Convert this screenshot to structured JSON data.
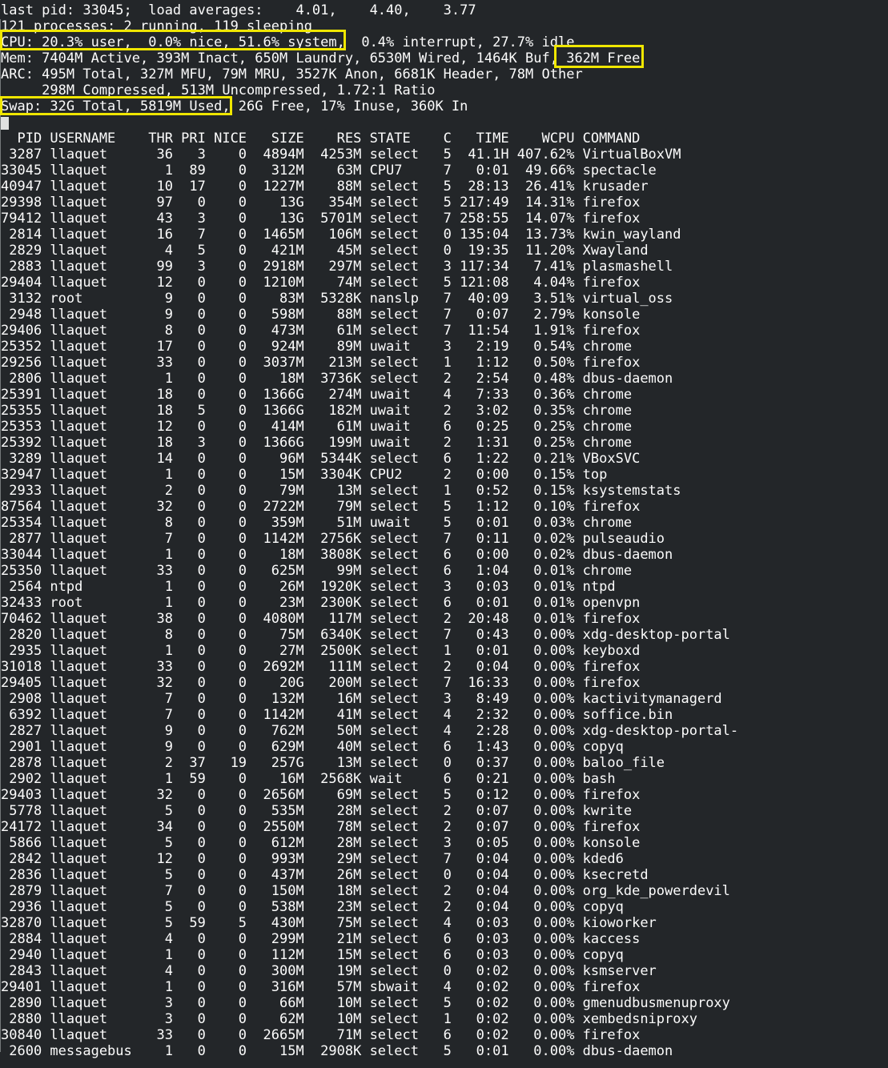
{
  "terminal": {
    "colors": {
      "background": "#232629",
      "foreground": "#fcfcfc",
      "highlight_border": "#efe600",
      "cursor": "#dfe0e0"
    },
    "summary_lines": [
      "last pid: 33045;  load averages:    4.01,    4.40,    3.77",
      "121 processes: 2 running, 119 sleeping",
      "CPU: 20.3% user,  0.0% nice, 51.6% system,  0.4% interrupt, 27.7% idle",
      "Mem: 7404M Active, 393M Inact, 650M Laundry, 6530M Wired, 1464K Buf, 362M Free",
      "ARC: 495M Total, 327M MFU, 79M MRU, 3527K Anon, 6681K Header, 78M Other",
      "     298M Compressed, 513M Uncompressed, 1.72:1 Ratio",
      "Swap: 32G Total, 5819M Used, 26G Free, 17% Inuse, 360K In"
    ],
    "highlights": [
      {
        "id": "cpu",
        "highlighted_text": "CPU: 20.3% user,  0.0% nice, 51.6% system,"
      },
      {
        "id": "mem-free",
        "highlighted_text": "362M Free"
      },
      {
        "id": "swap-used",
        "highlighted_text": "Swap: 32G Total, 5819M Used,"
      }
    ],
    "process_table": {
      "columns": [
        "PID",
        "USERNAME",
        "THR",
        "PRI",
        "NICE",
        "SIZE",
        "RES",
        "STATE",
        "C",
        "TIME",
        "WCPU",
        "COMMAND"
      ],
      "rows": [
        [
          "3287",
          "llaquet",
          "36",
          "3",
          "0",
          "4894M",
          "4253M",
          "select",
          "5",
          "41.1H",
          "407.62%",
          "VirtualBoxVM"
        ],
        [
          "33045",
          "llaquet",
          "1",
          "89",
          "0",
          "312M",
          "63M",
          "CPU7",
          "7",
          "0:01",
          "49.66%",
          "spectacle"
        ],
        [
          "40947",
          "llaquet",
          "10",
          "17",
          "0",
          "1227M",
          "88M",
          "select",
          "5",
          "28:13",
          "26.41%",
          "krusader"
        ],
        [
          "29398",
          "llaquet",
          "97",
          "0",
          "0",
          "13G",
          "354M",
          "select",
          "5",
          "217:49",
          "14.31%",
          "firefox"
        ],
        [
          "79412",
          "llaquet",
          "43",
          "3",
          "0",
          "13G",
          "5701M",
          "select",
          "7",
          "258:55",
          "14.07%",
          "firefox"
        ],
        [
          "2814",
          "llaquet",
          "16",
          "7",
          "0",
          "1465M",
          "106M",
          "select",
          "0",
          "135:04",
          "13.73%",
          "kwin_wayland"
        ],
        [
          "2829",
          "llaquet",
          "4",
          "5",
          "0",
          "421M",
          "45M",
          "select",
          "0",
          "19:35",
          "11.20%",
          "Xwayland"
        ],
        [
          "2883",
          "llaquet",
          "99",
          "3",
          "0",
          "2918M",
          "297M",
          "select",
          "3",
          "117:34",
          "7.41%",
          "plasmashell"
        ],
        [
          "29404",
          "llaquet",
          "12",
          "0",
          "0",
          "1210M",
          "74M",
          "select",
          "5",
          "121:08",
          "4.04%",
          "firefox"
        ],
        [
          "3132",
          "root",
          "9",
          "0",
          "0",
          "83M",
          "5328K",
          "nanslp",
          "7",
          "40:09",
          "3.51%",
          "virtual_oss"
        ],
        [
          "2948",
          "llaquet",
          "9",
          "0",
          "0",
          "598M",
          "88M",
          "select",
          "7",
          "0:07",
          "2.79%",
          "konsole"
        ],
        [
          "29406",
          "llaquet",
          "8",
          "0",
          "0",
          "473M",
          "61M",
          "select",
          "7",
          "11:54",
          "1.91%",
          "firefox"
        ],
        [
          "25352",
          "llaquet",
          "17",
          "0",
          "0",
          "924M",
          "89M",
          "uwait",
          "3",
          "2:19",
          "0.54%",
          "chrome"
        ],
        [
          "29256",
          "llaquet",
          "33",
          "0",
          "0",
          "3037M",
          "213M",
          "select",
          "1",
          "1:12",
          "0.50%",
          "firefox"
        ],
        [
          "2806",
          "llaquet",
          "1",
          "0",
          "0",
          "18M",
          "3736K",
          "select",
          "2",
          "2:54",
          "0.48%",
          "dbus-daemon"
        ],
        [
          "25391",
          "llaquet",
          "18",
          "0",
          "0",
          "1366G",
          "274M",
          "uwait",
          "4",
          "7:33",
          "0.36%",
          "chrome"
        ],
        [
          "25355",
          "llaquet",
          "18",
          "5",
          "0",
          "1366G",
          "182M",
          "uwait",
          "2",
          "3:02",
          "0.35%",
          "chrome"
        ],
        [
          "25353",
          "llaquet",
          "12",
          "0",
          "0",
          "414M",
          "61M",
          "uwait",
          "6",
          "0:25",
          "0.25%",
          "chrome"
        ],
        [
          "25392",
          "llaquet",
          "18",
          "3",
          "0",
          "1366G",
          "199M",
          "uwait",
          "2",
          "1:31",
          "0.25%",
          "chrome"
        ],
        [
          "3289",
          "llaquet",
          "14",
          "0",
          "0",
          "96M",
          "5344K",
          "select",
          "6",
          "1:22",
          "0.21%",
          "VBoxSVC"
        ],
        [
          "32947",
          "llaquet",
          "1",
          "0",
          "0",
          "15M",
          "3304K",
          "CPU2",
          "2",
          "0:00",
          "0.15%",
          "top"
        ],
        [
          "2933",
          "llaquet",
          "2",
          "0",
          "0",
          "79M",
          "13M",
          "select",
          "1",
          "0:52",
          "0.15%",
          "ksystemstats"
        ],
        [
          "87564",
          "llaquet",
          "32",
          "0",
          "0",
          "2722M",
          "79M",
          "select",
          "5",
          "1:12",
          "0.10%",
          "firefox"
        ],
        [
          "25354",
          "llaquet",
          "8",
          "0",
          "0",
          "359M",
          "51M",
          "uwait",
          "5",
          "0:01",
          "0.03%",
          "chrome"
        ],
        [
          "2877",
          "llaquet",
          "7",
          "0",
          "0",
          "1142M",
          "2756K",
          "select",
          "7",
          "0:11",
          "0.02%",
          "pulseaudio"
        ],
        [
          "33044",
          "llaquet",
          "1",
          "0",
          "0",
          "18M",
          "3808K",
          "select",
          "6",
          "0:00",
          "0.02%",
          "dbus-daemon"
        ],
        [
          "25350",
          "llaquet",
          "33",
          "0",
          "0",
          "625M",
          "99M",
          "select",
          "6",
          "1:04",
          "0.01%",
          "chrome"
        ],
        [
          "2564",
          "ntpd",
          "1",
          "0",
          "0",
          "26M",
          "1920K",
          "select",
          "3",
          "0:03",
          "0.01%",
          "ntpd"
        ],
        [
          "32433",
          "root",
          "1",
          "0",
          "0",
          "23M",
          "2300K",
          "select",
          "6",
          "0:01",
          "0.01%",
          "openvpn"
        ],
        [
          "70462",
          "llaquet",
          "38",
          "0",
          "0",
          "4080M",
          "117M",
          "select",
          "2",
          "20:48",
          "0.01%",
          "firefox"
        ],
        [
          "2820",
          "llaquet",
          "8",
          "0",
          "0",
          "75M",
          "6340K",
          "select",
          "7",
          "0:43",
          "0.00%",
          "xdg-desktop-portal"
        ],
        [
          "2935",
          "llaquet",
          "1",
          "0",
          "0",
          "27M",
          "2500K",
          "select",
          "1",
          "0:01",
          "0.00%",
          "keyboxd"
        ],
        [
          "31018",
          "llaquet",
          "33",
          "0",
          "0",
          "2692M",
          "111M",
          "select",
          "2",
          "0:04",
          "0.00%",
          "firefox"
        ],
        [
          "29405",
          "llaquet",
          "32",
          "0",
          "0",
          "20G",
          "200M",
          "select",
          "7",
          "16:33",
          "0.00%",
          "firefox"
        ],
        [
          "2908",
          "llaquet",
          "7",
          "0",
          "0",
          "132M",
          "16M",
          "select",
          "3",
          "8:49",
          "0.00%",
          "kactivitymanagerd"
        ],
        [
          "6392",
          "llaquet",
          "7",
          "0",
          "0",
          "1142M",
          "41M",
          "select",
          "4",
          "2:32",
          "0.00%",
          "soffice.bin"
        ],
        [
          "2827",
          "llaquet",
          "9",
          "0",
          "0",
          "762M",
          "50M",
          "select",
          "4",
          "2:28",
          "0.00%",
          "xdg-desktop-portal-"
        ],
        [
          "2901",
          "llaquet",
          "9",
          "0",
          "0",
          "629M",
          "40M",
          "select",
          "6",
          "1:43",
          "0.00%",
          "copyq"
        ],
        [
          "2878",
          "llaquet",
          "2",
          "37",
          "19",
          "257G",
          "13M",
          "select",
          "0",
          "0:37",
          "0.00%",
          "baloo_file"
        ],
        [
          "2902",
          "llaquet",
          "1",
          "59",
          "0",
          "16M",
          "2568K",
          "wait",
          "6",
          "0:21",
          "0.00%",
          "bash"
        ],
        [
          "29403",
          "llaquet",
          "32",
          "0",
          "0",
          "2656M",
          "69M",
          "select",
          "5",
          "0:12",
          "0.00%",
          "firefox"
        ],
        [
          "5778",
          "llaquet",
          "5",
          "0",
          "0",
          "535M",
          "28M",
          "select",
          "2",
          "0:07",
          "0.00%",
          "kwrite"
        ],
        [
          "24172",
          "llaquet",
          "34",
          "0",
          "0",
          "2550M",
          "78M",
          "select",
          "2",
          "0:07",
          "0.00%",
          "firefox"
        ],
        [
          "5866",
          "llaquet",
          "5",
          "0",
          "0",
          "612M",
          "28M",
          "select",
          "3",
          "0:05",
          "0.00%",
          "konsole"
        ],
        [
          "2842",
          "llaquet",
          "12",
          "0",
          "0",
          "993M",
          "29M",
          "select",
          "7",
          "0:04",
          "0.00%",
          "kded6"
        ],
        [
          "2836",
          "llaquet",
          "5",
          "0",
          "0",
          "437M",
          "26M",
          "select",
          "0",
          "0:04",
          "0.00%",
          "ksecretd"
        ],
        [
          "2879",
          "llaquet",
          "7",
          "0",
          "0",
          "150M",
          "18M",
          "select",
          "2",
          "0:04",
          "0.00%",
          "org_kde_powerdevil"
        ],
        [
          "2936",
          "llaquet",
          "5",
          "0",
          "0",
          "538M",
          "23M",
          "select",
          "2",
          "0:04",
          "0.00%",
          "copyq"
        ],
        [
          "32870",
          "llaquet",
          "5",
          "59",
          "5",
          "430M",
          "75M",
          "select",
          "4",
          "0:03",
          "0.00%",
          "kioworker"
        ],
        [
          "2884",
          "llaquet",
          "4",
          "0",
          "0",
          "299M",
          "21M",
          "select",
          "6",
          "0:03",
          "0.00%",
          "kaccess"
        ],
        [
          "2940",
          "llaquet",
          "1",
          "0",
          "0",
          "112M",
          "15M",
          "select",
          "6",
          "0:03",
          "0.00%",
          "copyq"
        ],
        [
          "2843",
          "llaquet",
          "4",
          "0",
          "0",
          "300M",
          "19M",
          "select",
          "0",
          "0:02",
          "0.00%",
          "ksmserver"
        ],
        [
          "29401",
          "llaquet",
          "1",
          "0",
          "0",
          "316M",
          "57M",
          "sbwait",
          "4",
          "0:02",
          "0.00%",
          "firefox"
        ],
        [
          "2890",
          "llaquet",
          "3",
          "0",
          "0",
          "66M",
          "10M",
          "select",
          "5",
          "0:02",
          "0.00%",
          "gmenudbusmenuproxy"
        ],
        [
          "2880",
          "llaquet",
          "3",
          "0",
          "0",
          "62M",
          "10M",
          "select",
          "1",
          "0:02",
          "0.00%",
          "xembedsniproxy"
        ],
        [
          "30840",
          "llaquet",
          "33",
          "0",
          "0",
          "2665M",
          "71M",
          "select",
          "6",
          "0:02",
          "0.00%",
          "firefox"
        ],
        [
          "2600",
          "messagebus",
          "1",
          "0",
          "0",
          "15M",
          "2908K",
          "select",
          "5",
          "0:01",
          "0.00%",
          "dbus-daemon"
        ]
      ]
    }
  }
}
